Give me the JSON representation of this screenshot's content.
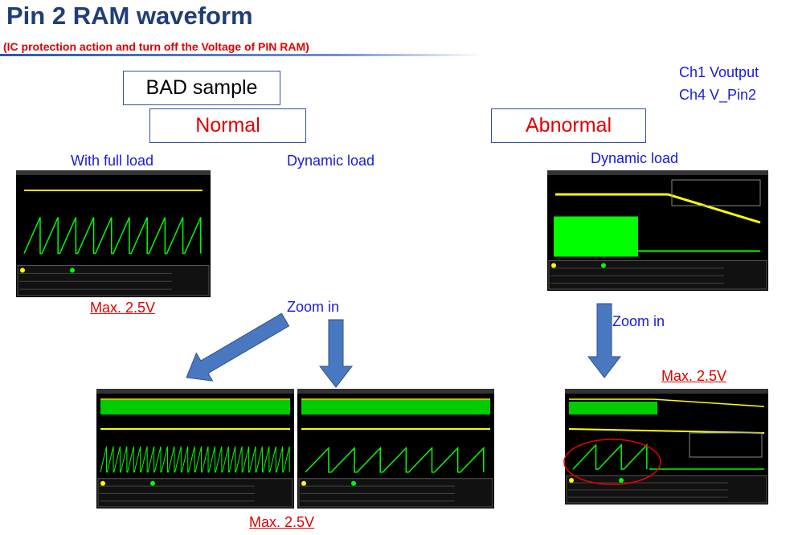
{
  "header": {
    "title": "Pin 2  RAM waveform",
    "subtitle": "(IC protection action and turn off the Voltage of PIN RAM)"
  },
  "boxes": {
    "sample": "BAD sample",
    "normal": "Normal",
    "abnormal": "Abnormal"
  },
  "channels": [
    "Ch1 Voutput",
    "Ch4 V_Pin2"
  ],
  "captions": {
    "full_load": "With full load",
    "dynamic_left": "Dynamic load",
    "dynamic_right": "Dynamic load"
  },
  "annotations": {
    "max_top_left": "Max. 2.5V",
    "zoom_left": "Zoom in",
    "zoom_right": "Zoom in",
    "max_right": "Max. 2.5V",
    "max_bottom": "Max. 2.5V"
  }
}
